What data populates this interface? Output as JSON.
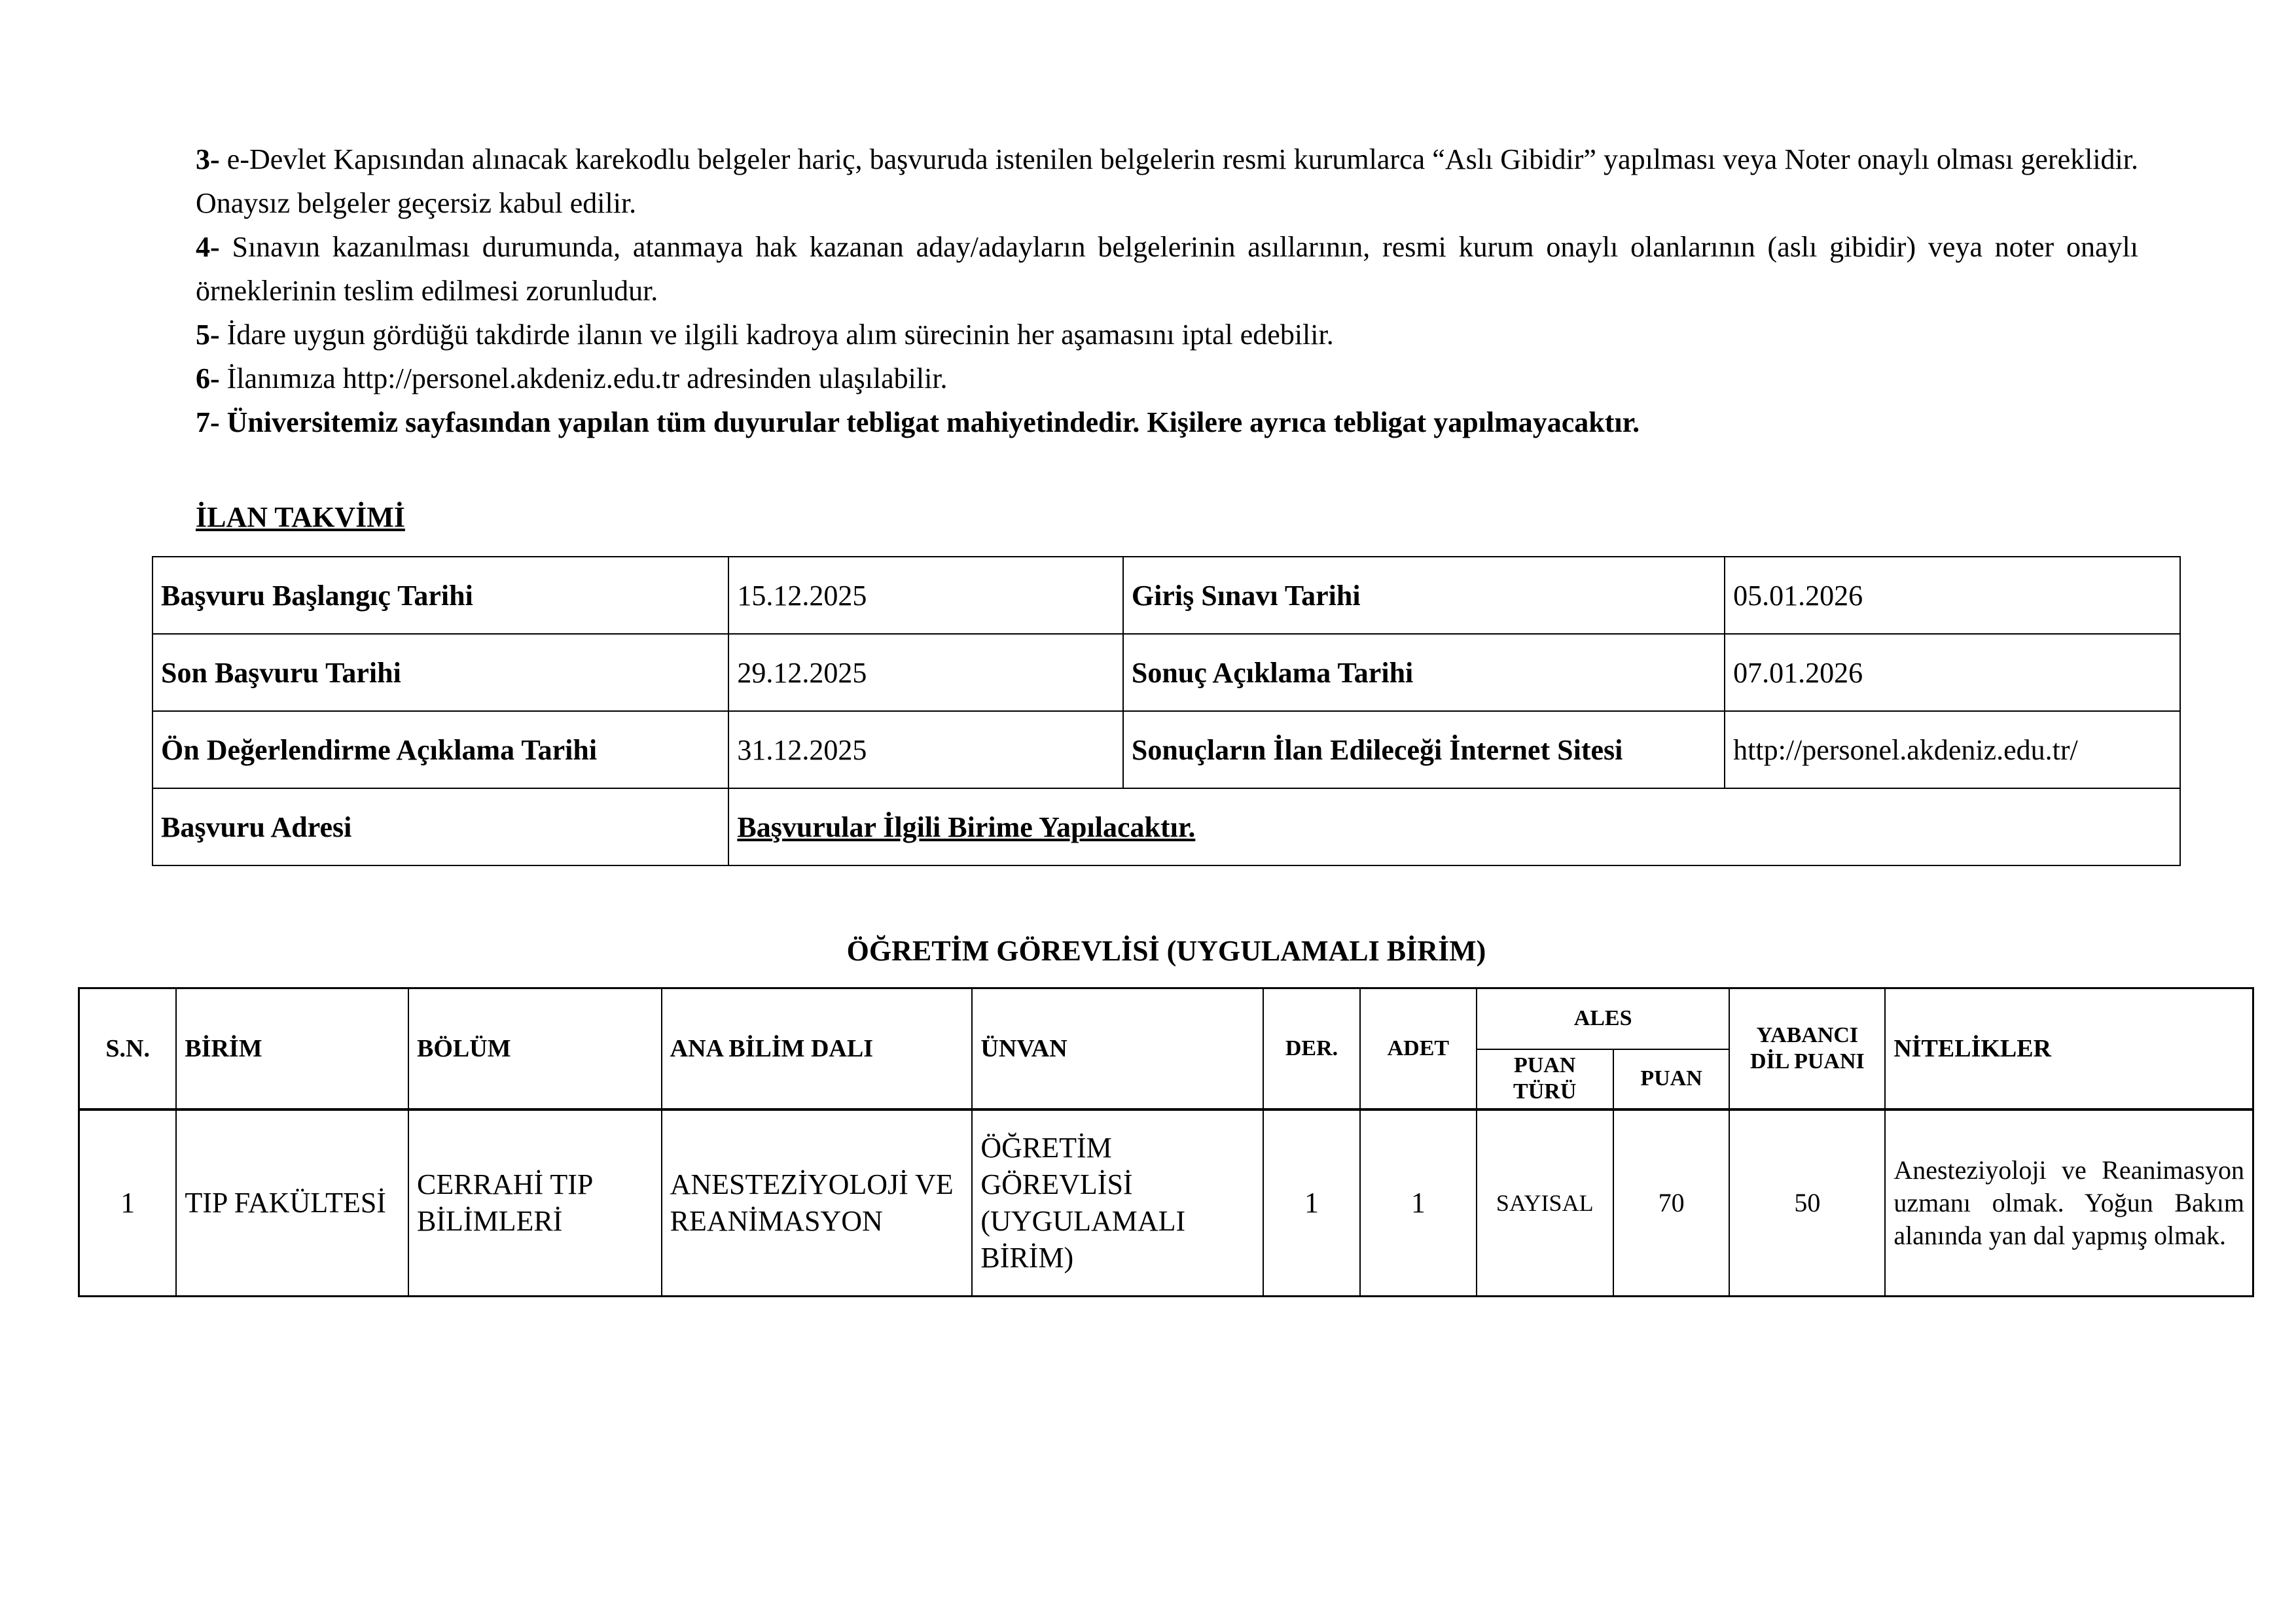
{
  "items": [
    {
      "num": "3-",
      "text": " e-Devlet Kapısından alınacak karekodlu belgeler hariç, başvuruda istenilen belgelerin resmi kurumlarca “Aslı Gibidir” yapılması veya Noter onaylı olması gereklidir. Onaysız belgeler geçersiz kabul edilir."
    },
    {
      "num": "4-",
      "text": " Sınavın kazanılması durumunda, atanmaya hak kazanan aday/adayların belgelerinin asıllarının, resmi kurum onaylı olanlarının (aslı gibidir) veya noter onaylı örneklerinin teslim edilmesi zorunludur."
    },
    {
      "num": "5-",
      "text": " İdare uygun gördüğü takdirde ilanın ve ilgili kadroya alım sürecinin her aşamasını iptal edebilir."
    },
    {
      "num": "6-",
      "text": " İlanımıza http://personel.akdeniz.edu.tr adresinden ulaşılabilir."
    },
    {
      "num": "7-",
      "text": " Üniversitemiz sayfasından yapılan tüm duyurular tebligat mahiyetindedir. Kişilere ayrıca tebligat yapılmayacaktır."
    }
  ],
  "calendar": {
    "title": "İLAN TAKVİMİ",
    "rows": [
      [
        "Başvuru Başlangıç Tarihi",
        "15.12.2025",
        "Giriş Sınavı Tarihi",
        "05.01.2026"
      ],
      [
        "Son Başvuru Tarihi",
        "29.12.2025",
        "Sonuç Açıklama Tarihi",
        "07.01.2026"
      ],
      [
        "Ön Değerlendirme Açıklama Tarihi",
        "31.12.2025",
        "Sonuçların İlan Edileceği İnternet Sitesi",
        "http://personel.akdeniz.edu.tr/"
      ]
    ],
    "address_label": "Başvuru Adresi",
    "address_value": "Başvurular İlgili Birime Yapılacaktır."
  },
  "positions": {
    "title": "ÖĞRETİM GÖREVLİSİ (UYGULAMALI BİRİM)",
    "headers": {
      "sn": "S.N.",
      "birim": "BİRİM",
      "bolum": "BÖLÜM",
      "abd": "ANA BİLİM DALI",
      "unvan": "ÜNVAN",
      "der": "DER.",
      "adet": "ADET",
      "ales": "ALES",
      "puan_turu": "PUAN TÜRÜ",
      "puan": "PUAN",
      "yabanci": "YABANCI DİL PUANI",
      "nitelikler": "NİTELİKLER"
    },
    "rows": [
      {
        "sn": "1",
        "birim": "TIP FAKÜLTESİ",
        "bolum": "CERRAHİ TIP BİLİMLERİ",
        "abd": "ANESTEZİYOLOJİ VE REANİMASYON",
        "unvan": "ÖĞRETİM GÖREVLİSİ (UYGULAMALI BİRİM)",
        "der": "1",
        "adet": "1",
        "puan_turu": "SAYISAL",
        "puan": "70",
        "yabanci": "50",
        "nitelikler": "Anesteziyoloji ve Reanimasyon uzmanı olmak. Yoğun Bakım alanında yan dal yapmış olmak."
      }
    ]
  }
}
